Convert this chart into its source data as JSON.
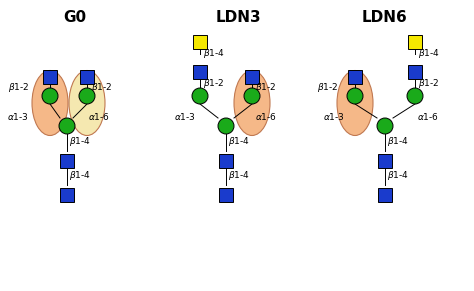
{
  "title_G0": "G0",
  "title_LDN3": "LDN3",
  "title_LDN6": "LDN6",
  "blue": "#1a3bcc",
  "green": "#1aaa1a",
  "yellow": "#f5e800",
  "ellipse_orange": "#f5b888",
  "ellipse_yellow": "#f5e8b0",
  "title_fontsize": 11,
  "label_fontsize": 6.5,
  "sq": 14,
  "cr": 8
}
